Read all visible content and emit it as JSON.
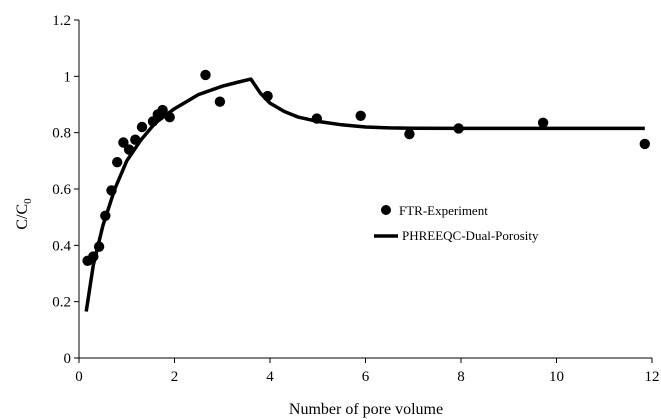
{
  "chart_data": {
    "type": "scatter",
    "title": "",
    "xlabel": "Number of pore volume",
    "ylabel": {
      "main": "C/C",
      "sub": "0"
    },
    "xlim": [
      0,
      12
    ],
    "ylim": [
      0,
      1.2
    ],
    "xticks": [
      "0",
      "2",
      "4",
      "6",
      "8",
      "10",
      "12"
    ],
    "yticks": [
      "0",
      "0.2",
      "0.4",
      "0.6",
      "0.8",
      "1",
      "1.2"
    ],
    "grid": false,
    "legend_position": "center-right",
    "series": [
      {
        "name": "FTR-Experiment",
        "kind": "scatter",
        "color": "#000000",
        "points": [
          [
            0.18,
            0.345
          ],
          [
            0.3,
            0.36
          ],
          [
            0.42,
            0.395
          ],
          [
            0.55,
            0.505
          ],
          [
            0.68,
            0.595
          ],
          [
            0.8,
            0.695
          ],
          [
            0.93,
            0.765
          ],
          [
            1.05,
            0.74
          ],
          [
            1.18,
            0.775
          ],
          [
            1.32,
            0.82
          ],
          [
            1.55,
            0.84
          ],
          [
            1.65,
            0.865
          ],
          [
            1.75,
            0.88
          ],
          [
            1.9,
            0.855
          ],
          [
            2.65,
            1.005
          ],
          [
            2.95,
            0.91
          ],
          [
            3.95,
            0.93
          ],
          [
            4.98,
            0.85
          ],
          [
            5.9,
            0.86
          ],
          [
            6.92,
            0.795
          ],
          [
            7.95,
            0.815
          ],
          [
            9.72,
            0.835
          ],
          [
            11.85,
            0.76
          ]
        ]
      },
      {
        "name": "PHREEQC-Dual-Porosity",
        "kind": "line",
        "color": "#000000",
        "points": [
          [
            0.15,
            0.165
          ],
          [
            0.3,
            0.33
          ],
          [
            0.5,
            0.47
          ],
          [
            0.75,
            0.6
          ],
          [
            1.0,
            0.7
          ],
          [
            1.3,
            0.775
          ],
          [
            1.6,
            0.835
          ],
          [
            2.0,
            0.885
          ],
          [
            2.5,
            0.935
          ],
          [
            3.0,
            0.965
          ],
          [
            3.3,
            0.978
          ],
          [
            3.6,
            0.99
          ],
          [
            3.8,
            0.94
          ],
          [
            4.0,
            0.905
          ],
          [
            4.3,
            0.875
          ],
          [
            4.6,
            0.855
          ],
          [
            5.0,
            0.84
          ],
          [
            5.5,
            0.828
          ],
          [
            6.0,
            0.82
          ],
          [
            6.5,
            0.817
          ],
          [
            7.0,
            0.816
          ],
          [
            8.0,
            0.815
          ],
          [
            9.0,
            0.815
          ],
          [
            10.0,
            0.815
          ],
          [
            11.0,
            0.815
          ],
          [
            11.85,
            0.815
          ]
        ]
      }
    ]
  }
}
